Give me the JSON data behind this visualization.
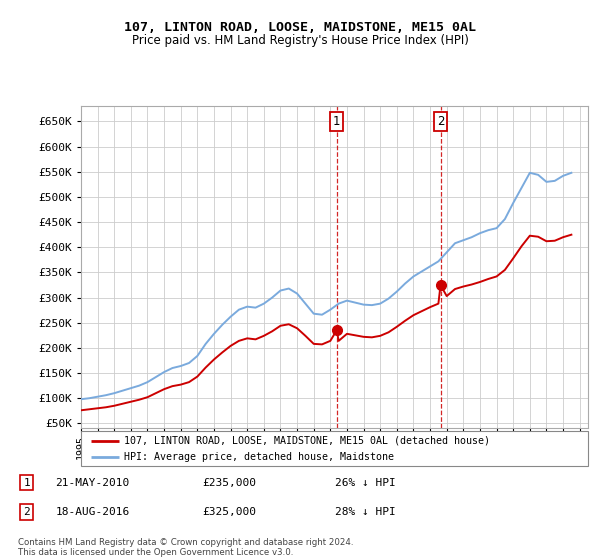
{
  "title": "107, LINTON ROAD, LOOSE, MAIDSTONE, ME15 0AL",
  "subtitle": "Price paid vs. HM Land Registry's House Price Index (HPI)",
  "ylim": [
    40000,
    680000
  ],
  "yticks": [
    50000,
    100000,
    150000,
    200000,
    250000,
    300000,
    350000,
    400000,
    450000,
    500000,
    550000,
    600000,
    650000
  ],
  "sale1_date": "21-MAY-2010",
  "sale1_price": 235000,
  "sale1_hpi_pct": "26%",
  "sale2_date": "18-AUG-2016",
  "sale2_price": 325000,
  "sale2_hpi_pct": "28%",
  "sale1_x": 2010.38,
  "sale2_x": 2016.63,
  "property_color": "#cc0000",
  "hpi_color": "#7aaadd",
  "property_label": "107, LINTON ROAD, LOOSE, MAIDSTONE, ME15 0AL (detached house)",
  "hpi_label": "HPI: Average price, detached house, Maidstone",
  "footer": "Contains HM Land Registry data © Crown copyright and database right 2024.\nThis data is licensed under the Open Government Licence v3.0.",
  "hpi_years": [
    1995,
    1995.5,
    1996,
    1996.5,
    1997,
    1997.5,
    1998,
    1998.5,
    1999,
    1999.5,
    2000,
    2000.5,
    2001,
    2001.5,
    2002,
    2002.5,
    2003,
    2003.5,
    2004,
    2004.5,
    2005,
    2005.5,
    2006,
    2006.5,
    2007,
    2007.5,
    2008,
    2008.5,
    2009,
    2009.5,
    2010,
    2010.5,
    2011,
    2011.5,
    2012,
    2012.5,
    2013,
    2013.5,
    2014,
    2014.5,
    2015,
    2015.5,
    2016,
    2016.5,
    2017,
    2017.5,
    2018,
    2018.5,
    2019,
    2019.5,
    2020,
    2020.5,
    2021,
    2021.5,
    2022,
    2022.5,
    2023,
    2023.5,
    2024,
    2024.5
  ],
  "hpi_vals": [
    98000,
    100000,
    103000,
    106000,
    110000,
    115000,
    120000,
    125000,
    132000,
    142000,
    152000,
    160000,
    164000,
    170000,
    184000,
    208000,
    228000,
    246000,
    262000,
    276000,
    282000,
    280000,
    288000,
    300000,
    314000,
    318000,
    308000,
    288000,
    268000,
    266000,
    276000,
    288000,
    294000,
    290000,
    286000,
    285000,
    288000,
    298000,
    312000,
    328000,
    342000,
    352000,
    362000,
    372000,
    390000,
    408000,
    414000,
    420000,
    428000,
    434000,
    438000,
    456000,
    488000,
    518000,
    548000,
    544000,
    530000,
    532000,
    542000,
    548000
  ],
  "prop_years": [
    1995,
    1995.5,
    1996,
    1996.5,
    1997,
    1997.5,
    1998,
    1998.5,
    1999,
    1999.5,
    2000,
    2000.5,
    2001,
    2001.5,
    2002,
    2002.5,
    2003,
    2003.5,
    2004,
    2004.5,
    2005,
    2005.5,
    2006,
    2006.5,
    2007,
    2007.5,
    2008,
    2008.5,
    2009,
    2009.5,
    2010,
    2010.38,
    2010.5,
    2011,
    2011.5,
    2012,
    2012.5,
    2013,
    2013.5,
    2014,
    2014.5,
    2015,
    2015.5,
    2016,
    2016.5,
    2016.63,
    2017,
    2017.5,
    2018,
    2018.5,
    2019,
    2019.5,
    2020,
    2020.5,
    2021,
    2021.5,
    2022,
    2022.5,
    2023,
    2023.5,
    2024,
    2024.5
  ],
  "prop_vals": [
    76000,
    78000,
    80000,
    82000,
    85000,
    89000,
    93000,
    97000,
    102000,
    110000,
    118000,
    124000,
    127000,
    132000,
    143000,
    161000,
    177000,
    191000,
    204000,
    214000,
    219000,
    217000,
    224000,
    233000,
    244000,
    247000,
    239000,
    224000,
    208000,
    207000,
    214000,
    235000,
    214000,
    228000,
    225000,
    222000,
    221000,
    224000,
    231000,
    242000,
    254000,
    265000,
    273000,
    281000,
    288000,
    325000,
    303000,
    317000,
    322000,
    326000,
    331000,
    337000,
    342000,
    355000,
    378000,
    402000,
    423000,
    421000,
    412000,
    413000,
    420000,
    425000
  ]
}
